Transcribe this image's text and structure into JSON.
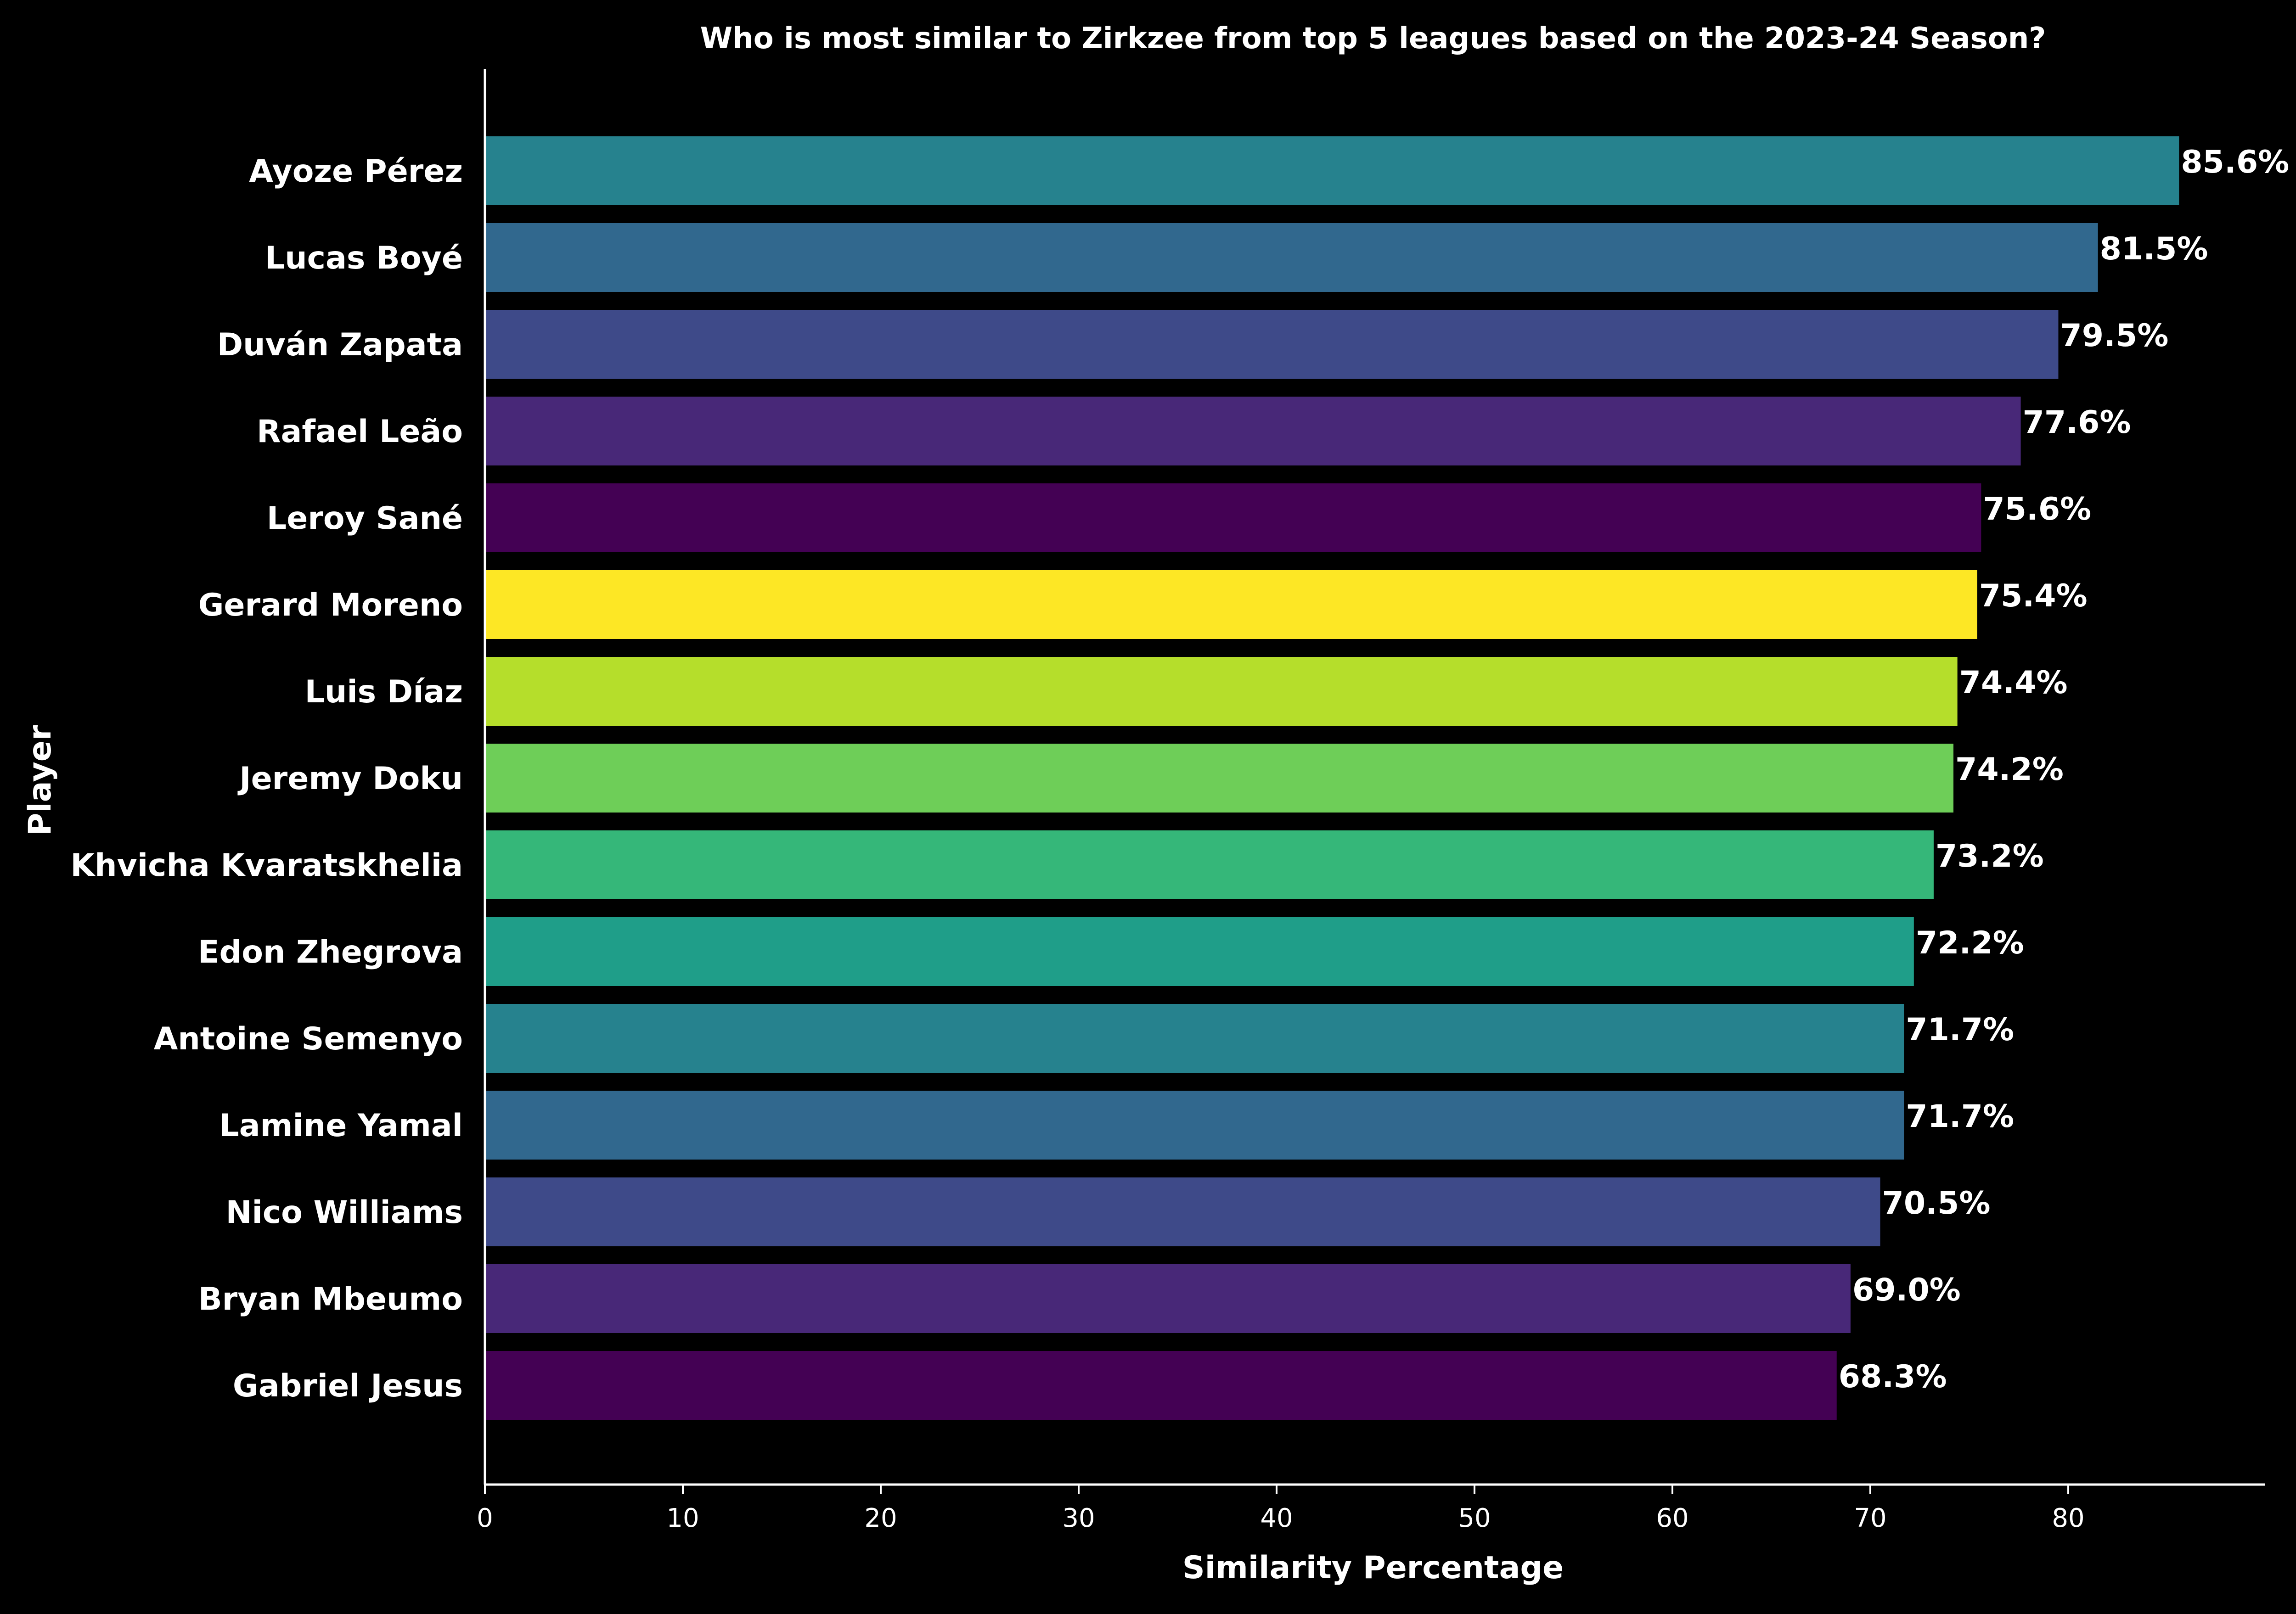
{
  "chart_data": {
    "type": "bar",
    "orientation": "horizontal",
    "title": "Who is most similar to Zirkzee from top 5 leagues based on the 2023-24 Season?",
    "xlabel": "Similarity Percentage",
    "ylabel": "Player",
    "xlim": [
      0,
      90
    ],
    "xticks": [
      0,
      10,
      20,
      30,
      40,
      50,
      60,
      70,
      80
    ],
    "grid": false,
    "legend": "none",
    "background": "#000000",
    "text_color": "#ffffff",
    "value_suffix": "%",
    "categories": [
      "Ayoze Pérez",
      "Lucas Boyé",
      "Duván Zapata",
      "Rafael Leão",
      "Leroy Sané",
      "Gerard Moreno",
      "Luis Díaz",
      "Jeremy Doku",
      "Khvicha Kvaratskhelia",
      "Edon Zhegrova",
      "Antoine Semenyo",
      "Lamine Yamal",
      "Nico Williams",
      "Bryan Mbeumo",
      "Gabriel Jesus"
    ],
    "values": [
      85.6,
      81.5,
      79.5,
      77.6,
      75.6,
      75.4,
      74.4,
      74.2,
      73.2,
      72.2,
      71.7,
      71.7,
      70.5,
      69.0,
      68.3
    ],
    "value_labels": [
      "85.6%",
      "81.5%",
      "79.5%",
      "77.6%",
      "75.6%",
      "75.4%",
      "74.4%",
      "74.2%",
      "73.2%",
      "72.2%",
      "71.7%",
      "71.7%",
      "70.5%",
      "69.0%",
      "68.3%"
    ],
    "colors": [
      "#26828e",
      "#31688e",
      "#3e4a89",
      "#482878",
      "#440154",
      "#fde725",
      "#b5de2b",
      "#6ece58",
      "#35b779",
      "#1f9e89",
      "#26828e",
      "#31688e",
      "#3e4a89",
      "#482878",
      "#440154"
    ]
  }
}
